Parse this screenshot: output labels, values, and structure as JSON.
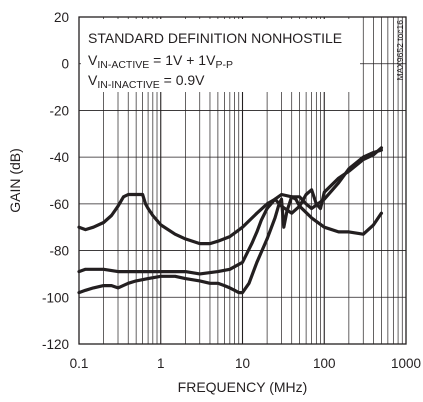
{
  "chart_data": {
    "type": "line",
    "title": "",
    "xlabel": "FREQUENCY (MHz)",
    "ylabel": "GAIN (dB)",
    "xscale": "log",
    "xlim": [
      0.1,
      1000
    ],
    "ylim": [
      -120,
      20
    ],
    "x_ticks": [
      "0.1",
      "1",
      "10",
      "100",
      "1000"
    ],
    "y_ticks": [
      "20",
      "0",
      "-20",
      "-40",
      "-60",
      "-80",
      "-100",
      "-120"
    ],
    "grid": true,
    "legend": "none",
    "annotation": {
      "line1": "STANDARD DEFINITION NONHOSTILE",
      "line2": {
        "main": "V",
        "sub": "IN-ACTIVE",
        "rest": " = 1V + 1V",
        "sub2": "P-P"
      },
      "line3": {
        "main": "V",
        "sub": "IN-INACTIVE",
        "rest": " = 0.9V"
      }
    },
    "figure_id": "MAX9652 toc16",
    "series": [
      {
        "x": [
          0.1,
          0.12,
          0.15,
          0.2,
          0.25,
          0.3,
          0.35,
          0.4,
          0.5,
          0.6,
          0.65,
          0.7,
          0.8,
          1,
          1.5,
          2,
          3,
          4,
          5,
          7,
          10,
          15,
          20,
          25,
          30,
          40,
          50,
          70,
          100,
          150,
          200,
          300,
          400,
          500
        ],
        "y": [
          -70,
          -71,
          -70,
          -68,
          -65,
          -61,
          -57,
          -56,
          -56,
          -56,
          -60,
          -62,
          -65,
          -69,
          -73,
          -75,
          -77,
          -77,
          -76,
          -74,
          -70,
          -64,
          -60,
          -58,
          -61,
          -64,
          -61,
          -66,
          -70,
          -72,
          -72,
          -73,
          -69,
          -64
        ]
      },
      {
        "x": [
          0.1,
          0.12,
          0.15,
          0.2,
          0.3,
          0.5,
          0.7,
          1,
          1.5,
          2,
          3,
          5,
          7,
          10,
          13,
          15,
          17,
          20,
          25,
          30,
          40,
          50,
          60,
          70,
          100,
          150,
          200,
          300,
          400,
          500
        ],
        "y": [
          -89,
          -88,
          -88,
          -88,
          -89,
          -89,
          -89,
          -89,
          -89,
          -89,
          -90,
          -89,
          -88,
          -85,
          -77,
          -72,
          -67,
          -62,
          -58,
          -56,
          -57,
          -57,
          -60,
          -62,
          -58,
          -51,
          -45,
          -40,
          -38,
          -37
        ]
      },
      {
        "x": [
          0.1,
          0.12,
          0.15,
          0.2,
          0.25,
          0.3,
          0.4,
          0.5,
          0.7,
          1,
          1.5,
          2,
          3,
          4,
          5,
          6,
          7,
          8,
          9,
          10,
          12,
          15,
          20,
          25,
          28,
          30,
          32,
          35,
          40,
          45,
          50,
          60,
          70,
          80,
          90,
          100,
          150,
          200,
          300,
          400,
          500
        ],
        "y": [
          -98,
          -97,
          -96,
          -95,
          -95,
          -96,
          -94,
          -93,
          -92,
          -91,
          -91,
          -92,
          -93,
          -94,
          -94,
          -95,
          -96,
          -97,
          -98,
          -98,
          -94,
          -85,
          -75,
          -66,
          -60,
          -58,
          -70,
          -63,
          -57,
          -58,
          -61,
          -56,
          -54,
          -60,
          -62,
          -55,
          -49,
          -46,
          -41,
          -39,
          -36
        ]
      }
    ]
  }
}
